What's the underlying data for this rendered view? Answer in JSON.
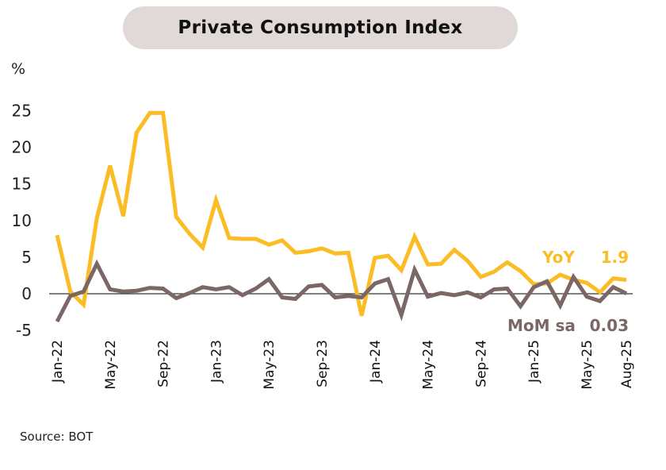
{
  "title": "Private Consumption Index",
  "unit_label": "%",
  "source": "Source: BOT",
  "colors": {
    "yoy": "#FBBC25",
    "mom": "#7B6766",
    "zero_line": "#333333",
    "title_bg": "#E0D9D8"
  },
  "chart_data": {
    "type": "line",
    "title": "Private Consumption Index",
    "xlabel": "",
    "ylabel": "%",
    "ylim": [
      -5,
      25
    ],
    "yticks": [
      25,
      20,
      15,
      10,
      5,
      0,
      -5
    ],
    "grid": false,
    "x": [
      "Jan-22",
      "Feb-22",
      "Mar-22",
      "Apr-22",
      "May-22",
      "Jun-22",
      "Jul-22",
      "Aug-22",
      "Sep-22",
      "Oct-22",
      "Nov-22",
      "Dec-22",
      "Jan-23",
      "Feb-23",
      "Mar-23",
      "Apr-23",
      "May-23",
      "Jun-23",
      "Jul-23",
      "Aug-23",
      "Sep-23",
      "Oct-23",
      "Nov-23",
      "Dec-23",
      "Jan-24",
      "Feb-24",
      "Mar-24",
      "Apr-24",
      "May-24",
      "Jun-24",
      "Jul-24",
      "Aug-24",
      "Sep-24",
      "Oct-24",
      "Nov-24",
      "Dec-24",
      "Jan-25",
      "Feb-25",
      "Mar-25",
      "Apr-25",
      "May-25",
      "Jun-25",
      "Jul-25",
      "Aug-25"
    ],
    "xtick_labels": [
      "Jan-22",
      "May-22",
      "Sep-22",
      "Jan-23",
      "May-23",
      "Sep-23",
      "Jan-24",
      "May-24",
      "Sep-24",
      "Jan-25",
      "May-25",
      "Aug-25"
    ],
    "series": [
      {
        "name": "YoY",
        "end_label": "1.9",
        "values": [
          8.0,
          0.3,
          -1.5,
          10.3,
          17.5,
          10.6,
          22.0,
          24.7,
          24.7,
          10.5,
          8.2,
          6.3,
          12.8,
          7.6,
          7.5,
          7.5,
          6.7,
          7.3,
          5.6,
          5.8,
          6.2,
          5.5,
          5.6,
          -3.0,
          4.9,
          5.2,
          3.2,
          7.8,
          4.0,
          4.1,
          6.0,
          4.5,
          2.3,
          3.0,
          4.3,
          3.1,
          1.3,
          1.4,
          2.6,
          1.9,
          1.5,
          0.2,
          2.1,
          1.9
        ]
      },
      {
        "name": "MoM sa",
        "end_label": "0.03",
        "values": [
          -3.8,
          -0.3,
          0.3,
          4.1,
          0.6,
          0.3,
          0.4,
          0.8,
          0.7,
          -0.6,
          0.1,
          0.9,
          0.6,
          0.9,
          -0.2,
          0.7,
          2.0,
          -0.5,
          -0.7,
          1.0,
          1.2,
          -0.5,
          -0.3,
          -0.5,
          1.4,
          2.0,
          -2.9,
          3.3,
          -0.4,
          0.1,
          -0.2,
          0.2,
          -0.5,
          0.6,
          0.7,
          -1.7,
          0.9,
          1.7,
          -1.6,
          2.3,
          -0.4,
          -1.0,
          0.9,
          0.03
        ]
      }
    ],
    "legend": "inline-right"
  }
}
